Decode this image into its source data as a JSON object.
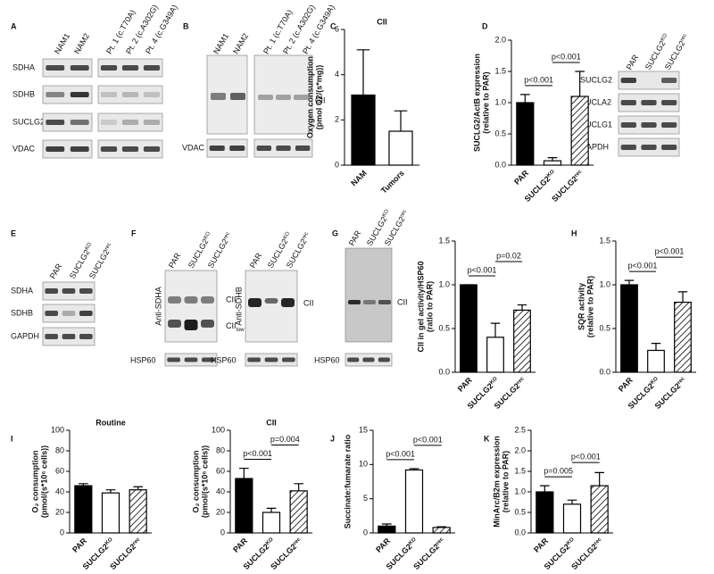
{
  "blots": {
    "A": {
      "panel": "A",
      "lanes": [
        "NAM1",
        "NAM2",
        "Pt. 1 (c.T70A)",
        "Pt. 2 (c.A302G)",
        "Pt. 4 (c.G349A)"
      ],
      "rows": [
        "SDHA",
        "SDHB",
        "SUCLG2",
        "VDAC"
      ]
    },
    "B": {
      "panel": "B",
      "lanes": [
        "NAM1",
        "NAM2",
        "Pt. 1 (c.T70A)",
        "Pt. 2 (c.A302G)",
        "Pt. 4 (c.G349A)"
      ],
      "band": "CII",
      "loading": "VDAC"
    },
    "D": {
      "lanes": [
        [
          "PAR"
        ],
        [
          "SUCLG2",
          "KO"
        ],
        [
          "SUCLG2",
          "rec"
        ]
      ],
      "rows": [
        "SUCLG2",
        "SUCLA2",
        "SUCLG1",
        "GAPDH"
      ]
    },
    "E": {
      "panel": "E",
      "lanes": [
        [
          "PAR"
        ],
        [
          "SUCLG2",
          "KO"
        ],
        [
          "SUCLG2",
          "rec"
        ]
      ],
      "rows": [
        "SDHA",
        "SDHB",
        "GAPDH"
      ]
    },
    "F": {
      "panel": "F",
      "lanes": [
        [
          "PAR"
        ],
        [
          "SUCLG2",
          "KO"
        ],
        [
          "SUCLG2",
          "rec"
        ]
      ],
      "antibodies": [
        "Anti-SDHA",
        "Anti-SDHB"
      ],
      "band": "CII",
      "band_low": [
        "CII",
        "low"
      ],
      "loading": "HSP60"
    },
    "G": {
      "panel": "G",
      "lanes": [
        [
          "PAR"
        ],
        [
          "SUCLG2",
          "KO"
        ],
        [
          "SUCLG2",
          "rec"
        ]
      ],
      "band": "CII",
      "loading": "HSP60"
    }
  },
  "chart_data": [
    {
      "type": "bar",
      "panel": "C",
      "title": "CII",
      "ylabel": [
        "Oxygen consumption",
        "(pmol O2/(s*mg))"
      ],
      "categories": [
        [
          "NAM"
        ],
        [
          "Tumors"
        ]
      ],
      "values": [
        3.1,
        1.5
      ],
      "errors": [
        2.0,
        0.9
      ],
      "fills": [
        "#000000",
        "#ffffff"
      ],
      "ylim": [
        0,
        6
      ],
      "yticks": [
        0,
        2,
        4,
        6
      ],
      "annotations": []
    },
    {
      "type": "bar",
      "panel": "D",
      "ylabel": [
        "SUCLG2/ActB expression",
        "(relative to PAR)"
      ],
      "categories": [
        [
          "PAR"
        ],
        [
          "SUCLG2",
          "KO"
        ],
        [
          "SUCLG2",
          "rec"
        ]
      ],
      "values": [
        1.0,
        0.07,
        1.1
      ],
      "errors": [
        0.13,
        0.05,
        0.4
      ],
      "fills": [
        "#000000",
        "#ffffff",
        "hatch"
      ],
      "ylim": [
        0,
        2
      ],
      "yticks": [
        {
          "value": 0,
          "label": "0.0"
        },
        {
          "value": 0.5,
          "label": "0.5"
        },
        {
          "value": 1,
          "label": "1.0"
        },
        {
          "value": 1.5,
          "label": "1.5"
        },
        {
          "value": 2,
          "label": "2.0"
        }
      ],
      "annotations": [
        {
          "text": "p<0.001",
          "from": 0,
          "to": 1
        },
        {
          "text": "p<0.001",
          "from": 1,
          "to": 2
        }
      ]
    },
    {
      "type": "bar",
      "ylabel": [
        "CII in gel activity/HSP60",
        "(ratio to PAR)"
      ],
      "categories": [
        [
          "PAR"
        ],
        [
          "SUCLG2",
          "KO"
        ],
        [
          "SUCLG2",
          "rec"
        ]
      ],
      "values": [
        1.0,
        0.4,
        0.71
      ],
      "errors": [
        0,
        0.16,
        0.06
      ],
      "fills": [
        "#000000",
        "#ffffff",
        "hatch"
      ],
      "ylim": [
        0,
        1.5
      ],
      "yticks": [
        {
          "value": 0,
          "label": "0.0"
        },
        {
          "value": 0.5,
          "label": "0.5"
        },
        {
          "value": 1,
          "label": "1.0"
        },
        {
          "value": 1.5,
          "label": "1.5"
        }
      ],
      "annotations": [
        {
          "text": "p<0.001",
          "from": 0,
          "to": 1
        },
        {
          "text": "p=0.02",
          "from": 1,
          "to": 2
        }
      ]
    },
    {
      "type": "bar",
      "panel": "H",
      "ylabel": [
        "SQR activity",
        "(relative to PAR)"
      ],
      "categories": [
        [
          "PAR"
        ],
        [
          "SUCLG2",
          "KO"
        ],
        [
          "SUCLG2",
          "rec"
        ]
      ],
      "values": [
        1.0,
        0.25,
        0.8
      ],
      "errors": [
        0.05,
        0.08,
        0.12
      ],
      "fills": [
        "#000000",
        "#ffffff",
        "hatch"
      ],
      "ylim": [
        0,
        1.5
      ],
      "yticks": [
        {
          "value": 0,
          "label": "0.0"
        },
        {
          "value": 0.5,
          "label": "0.5"
        },
        {
          "value": 1,
          "label": "1.0"
        },
        {
          "value": 1.5,
          "label": "1.5"
        }
      ],
      "annotations": [
        {
          "text": "p<0.001",
          "from": 0,
          "to": 1
        },
        {
          "text": "p<0.001",
          "from": 1,
          "to": 2
        }
      ]
    },
    {
      "type": "bar",
      "panel": "I",
      "title": "Routine",
      "ylabel": [
        "O₂ consumption",
        "(pmol/(s*10⁶ cells))"
      ],
      "categories": [
        [
          "PAR"
        ],
        [
          "SUCLG2",
          "KO"
        ],
        [
          "SUCLG2",
          "rec"
        ]
      ],
      "values": [
        46,
        39,
        42
      ],
      "errors": [
        2,
        3,
        3
      ],
      "fills": [
        "#000000",
        "#ffffff",
        "hatch"
      ],
      "ylim": [
        0,
        100
      ],
      "yticks": [
        0,
        20,
        40,
        60,
        80,
        100
      ],
      "annotations": []
    },
    {
      "type": "bar",
      "title": "CII",
      "ylabel": [
        "O₂ consumption",
        "(pmol/(s*10⁶ cells))"
      ],
      "categories": [
        [
          "PAR"
        ],
        [
          "SUCLG2",
          "KO"
        ],
        [
          "SUCLG2",
          "rec"
        ]
      ],
      "values": [
        53,
        20,
        41
      ],
      "errors": [
        10,
        4,
        7
      ],
      "fills": [
        "#000000",
        "#ffffff",
        "hatch"
      ],
      "ylim": [
        0,
        100
      ],
      "yticks": [
        0,
        20,
        40,
        60,
        80,
        100
      ],
      "annotations": [
        {
          "text": "p<0.001",
          "from": 0,
          "to": 1
        },
        {
          "text": "p=0.004",
          "from": 1,
          "to": 2
        }
      ]
    },
    {
      "type": "bar",
      "panel": "J",
      "ylabel": [
        "Succinate:fumarate ratio"
      ],
      "categories": [
        [
          "PAR"
        ],
        [
          "SUCLG2",
          "KO"
        ],
        [
          "SUCLG2",
          "rec"
        ]
      ],
      "values": [
        1.0,
        9.2,
        0.8
      ],
      "errors": [
        0.3,
        0.2,
        0.1
      ],
      "fills": [
        "#000000",
        "#ffffff",
        "hatch"
      ],
      "ylim": [
        0,
        15
      ],
      "yticks": [
        0,
        5,
        10,
        15
      ],
      "annotations": [
        {
          "text": "p<0.001",
          "from": 0,
          "to": 1
        },
        {
          "text": "p<0.001",
          "from": 1,
          "to": 2
        }
      ]
    },
    {
      "type": "bar",
      "panel": "K",
      "ylabel": [
        "MinArc/B2m expression",
        "(relative to PAR)"
      ],
      "categories": [
        [
          "PAR"
        ],
        [
          "SUCLG2",
          "KO"
        ],
        [
          "SUCLG2",
          "rec"
        ]
      ],
      "values": [
        1.0,
        0.7,
        1.15
      ],
      "errors": [
        0.15,
        0.1,
        0.32
      ],
      "fills": [
        "#000000",
        "#ffffff",
        "hatch"
      ],
      "ylim": [
        0,
        2.5
      ],
      "yticks": [
        {
          "value": 0,
          "label": "0.0"
        },
        {
          "value": 0.5,
          "label": "0.5"
        },
        {
          "value": 1,
          "label": "1.0"
        },
        {
          "value": 1.5,
          "label": "1.5"
        },
        {
          "value": 2,
          "label": "2.0"
        },
        {
          "value": 2.5,
          "label": "2.5"
        }
      ],
      "annotations": [
        {
          "text": "p=0.005",
          "from": 0,
          "to": 1
        },
        {
          "text": "p<0.001",
          "from": 1,
          "to": 2
        }
      ]
    }
  ]
}
